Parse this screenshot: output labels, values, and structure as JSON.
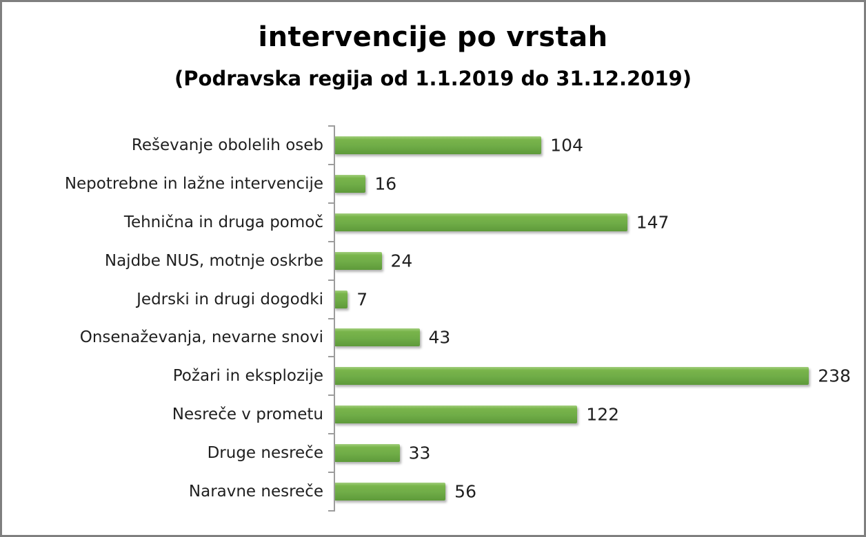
{
  "chart_data": {
    "type": "bar",
    "orientation": "horizontal",
    "title": "intervencije po vrstah",
    "subtitle": "(Podravska regija od 1.1.2019 do 31.12.2019)",
    "categories": [
      "Reševanje obolelih oseb",
      "Nepotrebne in lažne intervencije",
      "Tehnična in druga pomoč",
      "Najdbe NUS, motnje oskrbe",
      "Jedrski in drugi dogodki",
      "Onsenaževanja, nevarne snovi",
      "Požari in eksplozije",
      "Nesreče v prometu",
      "Druge nesreče",
      "Naravne nesreče"
    ],
    "values": [
      104,
      16,
      147,
      24,
      7,
      43,
      238,
      122,
      33,
      56
    ],
    "data_labels": true,
    "xlim": [
      0,
      250
    ],
    "grid": false,
    "legend": false
  },
  "colors": {
    "background": "#ffffff",
    "border": "#7f7f7f",
    "text": "#1f1f1f",
    "title": "#000000",
    "axis": "#9c9c9c",
    "bar_main": "#6fac47",
    "bar_top": "#a3cf7d",
    "bar_highlight": "#79b54b",
    "bar_bottom": "#5e9a3a"
  }
}
